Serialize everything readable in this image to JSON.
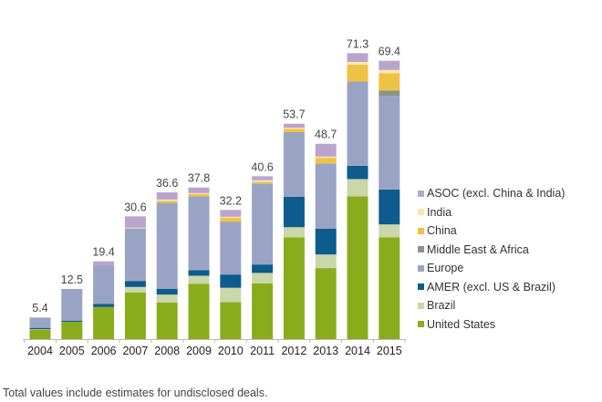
{
  "chart_data": {
    "type": "bar",
    "stacked": true,
    "title": "",
    "xlabel": "",
    "ylabel": "",
    "ylim": [
      0,
      75
    ],
    "grid": false,
    "legend_position": "right",
    "categories": [
      "2004",
      "2005",
      "2006",
      "2007",
      "2008",
      "2009",
      "2010",
      "2011",
      "2012",
      "2013",
      "2014",
      "2015"
    ],
    "totals": [
      "5.4",
      "12.5",
      "19.4",
      "30.6",
      "36.6",
      "37.8",
      "32.2",
      "40.6",
      "53.7",
      "48.7",
      "71.3",
      "69.4"
    ],
    "series": [
      {
        "name": "United States",
        "color": "#8aac1c",
        "values": [
          2.4,
          4.3,
          8.0,
          11.6,
          9.1,
          13.8,
          9.2,
          13.9,
          25.4,
          17.7,
          35.6,
          25.4
        ]
      },
      {
        "name": "Brazil",
        "color": "#c9d7a9",
        "values": [
          0.1,
          0.0,
          0.0,
          1.4,
          2.0,
          2.0,
          3.6,
          2.6,
          2.5,
          3.4,
          4.3,
          3.2
        ]
      },
      {
        "name": "AMER (excl. US & Brazil)",
        "color": "#0e5b8d",
        "values": [
          0.3,
          0.3,
          0.8,
          1.5,
          1.4,
          1.4,
          3.3,
          2.1,
          7.6,
          6.4,
          3.3,
          8.7
        ]
      },
      {
        "name": "Europe",
        "color": "#99a4c5",
        "values": [
          2.5,
          7.9,
          9.6,
          13.1,
          21.5,
          18.4,
          13.2,
          20.2,
          16.1,
          16.3,
          21.0,
          23.3
        ]
      },
      {
        "name": "Middle East & Africa",
        "color": "#8d9585",
        "values": [
          0,
          0,
          0,
          0,
          0,
          0,
          0,
          0,
          0,
          0,
          0,
          1.4
        ]
      },
      {
        "name": "China",
        "color": "#f0c244",
        "values": [
          0,
          0,
          0,
          0,
          0.5,
          0.6,
          1.0,
          0.4,
          0.8,
          1.4,
          4.2,
          4.3
        ]
      },
      {
        "name": "India",
        "color": "#f6e9aa",
        "values": [
          0,
          0,
          0,
          0.2,
          0.3,
          0.2,
          0.2,
          0.4,
          0.3,
          0.3,
          0.7,
          0.8
        ]
      },
      {
        "name": "ASOC (excl. China & India)",
        "color": "#baa4cd",
        "values": [
          0.1,
          0.0,
          1.0,
          2.8,
          1.8,
          1.4,
          1.7,
          1.0,
          1.0,
          3.2,
          2.2,
          2.3
        ]
      }
    ]
  },
  "footnote": "Total values include estimates for undisclosed deals."
}
